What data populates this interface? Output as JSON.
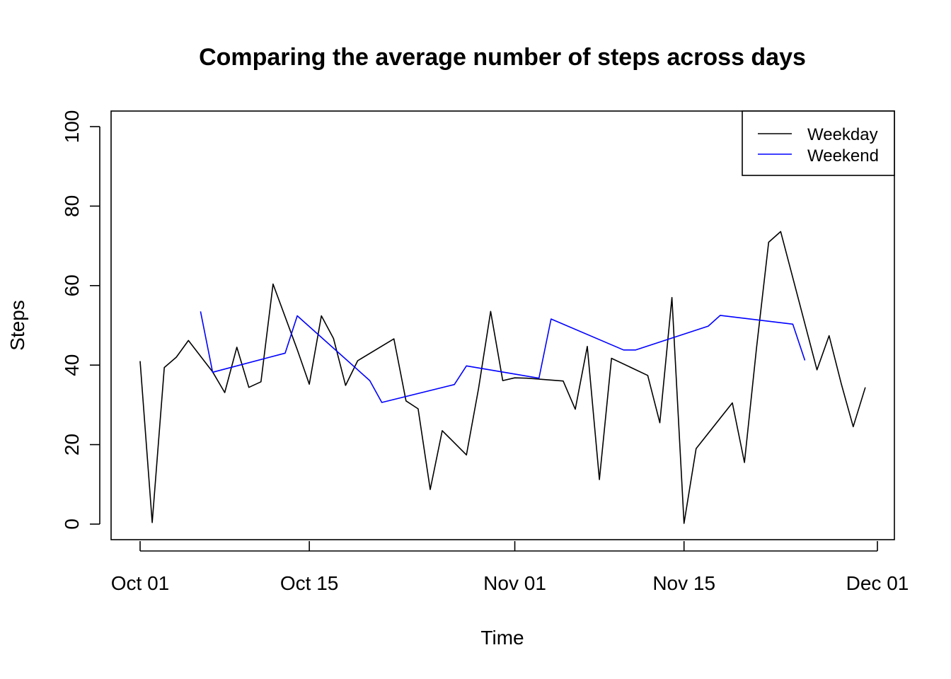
{
  "chart_data": {
    "type": "line",
    "title": "Comparing the average number of steps across days",
    "xlabel": "Time",
    "ylabel": "Steps",
    "ylim": [
      0,
      100
    ],
    "xlim": [
      0,
      61
    ],
    "yticks": [
      0,
      20,
      40,
      60,
      80,
      100
    ],
    "xticks": [
      {
        "day": 0,
        "label": "Oct 01"
      },
      {
        "day": 14,
        "label": "Oct 15"
      },
      {
        "day": 31,
        "label": "Nov 01"
      },
      {
        "day": 45,
        "label": "Nov 15"
      },
      {
        "day": 61,
        "label": "Dec 01"
      }
    ],
    "legend": {
      "placement": "top-right",
      "entries": [
        {
          "name": "Weekday",
          "color": "#000000"
        },
        {
          "name": "Weekend",
          "color": "#0000ff"
        }
      ]
    },
    "series": [
      {
        "name": "Weekday",
        "color": "#000000",
        "x": [
          0,
          1,
          2,
          3,
          4,
          6,
          7,
          8,
          9,
          10,
          11,
          13,
          14,
          15,
          16,
          17,
          18,
          21,
          22,
          23,
          24,
          25,
          27,
          28,
          29,
          30,
          31,
          32,
          35,
          36,
          37,
          38,
          39,
          42,
          43,
          44,
          45,
          46,
          49,
          50,
          51,
          52,
          53,
          56,
          57,
          58,
          59,
          60
        ],
        "values": [
          41,
          0.4,
          39.4,
          42,
          46.2,
          38.3,
          33.1,
          44.5,
          34.4,
          35.8,
          60.4,
          43.9,
          35.2,
          52.4,
          46.7,
          34.9,
          41.1,
          46.6,
          31,
          29,
          8.7,
          23.5,
          17.4,
          34.1,
          53.5,
          36.1,
          36.8,
          36.7,
          36,
          28.9,
          44.7,
          11.2,
          41.7,
          37.4,
          25.5,
          57,
          0.2,
          19,
          30.5,
          15.5,
          44.4,
          70.9,
          73.6,
          38.8,
          47.4,
          35.4,
          24.5,
          34.4
        ]
      },
      {
        "name": "Weekend",
        "color": "#0000ff",
        "x": [
          5,
          6,
          12,
          13,
          19,
          20,
          26,
          27,
          33,
          34,
          40,
          41,
          47,
          48,
          54,
          55
        ],
        "values": [
          53.5,
          38.2,
          43,
          52.4,
          36.1,
          30.6,
          35.1,
          39.8,
          36.7,
          51.6,
          43.8,
          43.8,
          49.8,
          52.5,
          50.3,
          41.2
        ]
      }
    ]
  }
}
